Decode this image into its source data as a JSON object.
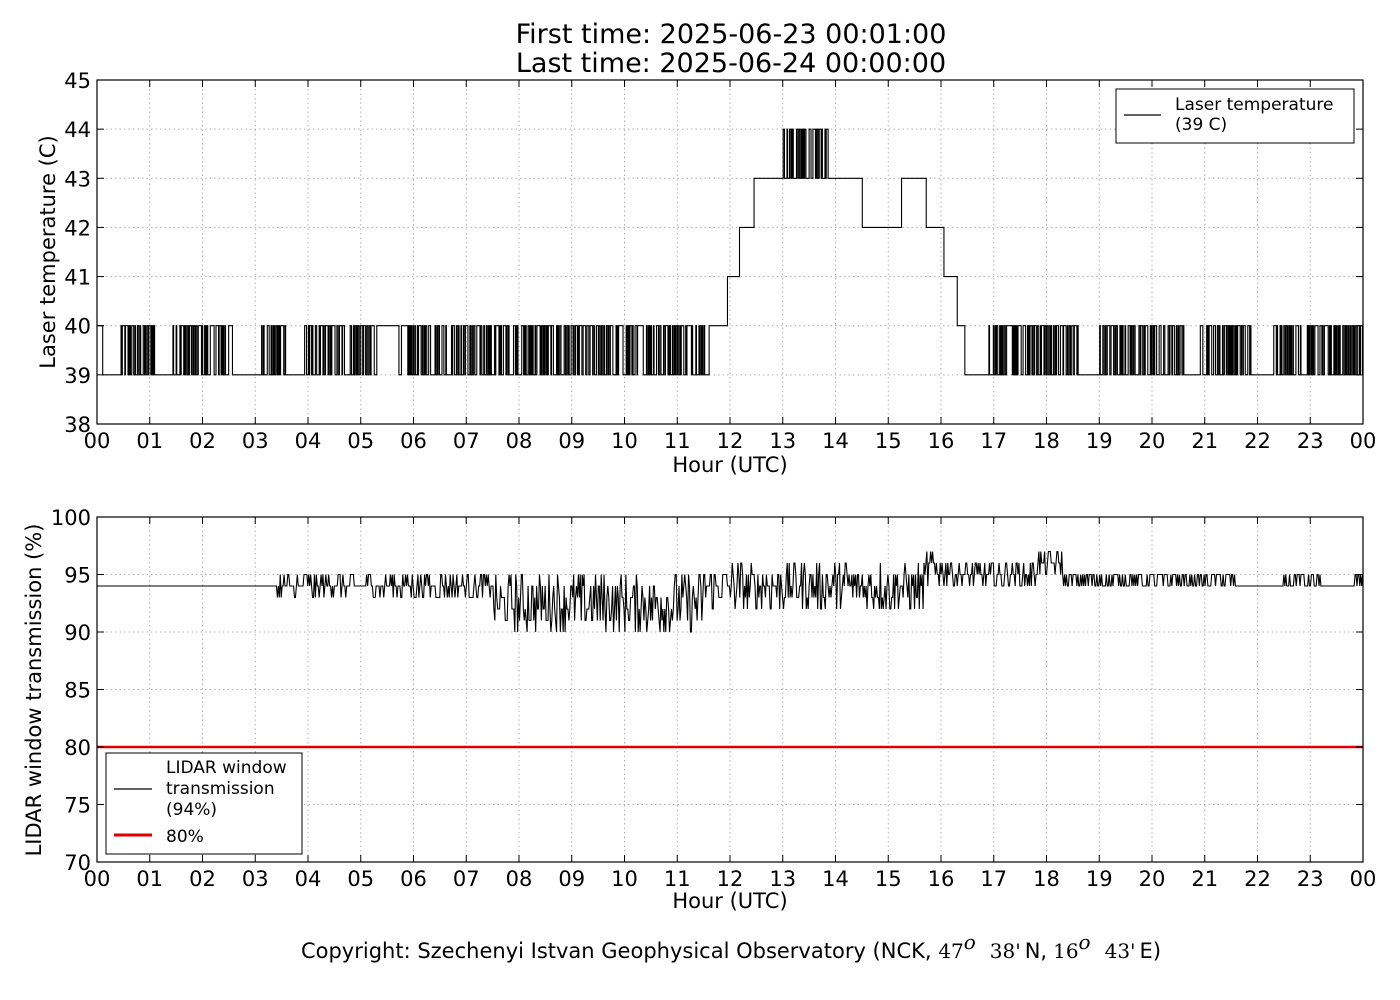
{
  "header": {
    "title_line1": "First time: 2025-06-23 00:01:00",
    "title_line2": "Last time: 2025-06-24 00:00:00"
  },
  "footer": {
    "copyright_prefix": "Copyright: Szechenyi Istvan Geophysical Observatory (NCK, ",
    "lat_deg": "47",
    "deg_symbol": "o",
    "lat_min": "38'",
    "lat_dir": "N,",
    "lon_deg": "16",
    "lon_min": "43'",
    "lon_dir": "E)"
  },
  "colors": {
    "series": "#000000",
    "threshold": "#e00000",
    "grid": "#b0b0b0"
  },
  "chart_data": [
    {
      "type": "line",
      "xlabel": "Hour (UTC)",
      "ylabel": "Laser temperature (C)",
      "xlim": [
        0,
        24
      ],
      "ylim": [
        38,
        45
      ],
      "grid": true,
      "legend_position": "top-right",
      "x_tick_labels": [
        "00",
        "01",
        "02",
        "03",
        "04",
        "05",
        "06",
        "07",
        "08",
        "09",
        "10",
        "11",
        "12",
        "13",
        "14",
        "15",
        "16",
        "17",
        "18",
        "19",
        "20",
        "21",
        "22",
        "23",
        "00"
      ],
      "y_ticks": [
        38,
        39,
        40,
        41,
        42,
        43,
        44,
        45
      ],
      "series": [
        {
          "name": "Laser temperature\n(39 C)",
          "legend_line1": "Laser temperature",
          "legend_line2": "(39 C)",
          "x": [
            0,
            0.1,
            0.5,
            0.95,
            1.6,
            2.5,
            3.0,
            4.0,
            4.3,
            5.0,
            5.8,
            6.0,
            7.0,
            7.4,
            8.0,
            8.6,
            9.0,
            10.0,
            11.0,
            11.6,
            11.95,
            12.17,
            12.45,
            13.0,
            13.85,
            14.5,
            15.25,
            15.72,
            16.05,
            16.3,
            16.45,
            17.0,
            18.0,
            19.0,
            20.0,
            21.0,
            22.0,
            23.0,
            24.0
          ],
          "y": [
            40,
            39,
            40,
            39,
            40,
            39,
            39,
            39,
            40,
            40,
            39,
            39,
            40,
            40,
            40,
            40,
            39,
            39,
            39,
            40,
            41,
            42,
            43,
            44,
            43,
            42,
            43,
            42,
            41,
            40,
            39,
            39,
            39,
            39,
            39,
            39,
            39,
            39,
            40
          ],
          "noise_segments": [
            {
              "from": 0.45,
              "to": 1.1,
              "low": 39,
              "high": 40
            },
            {
              "from": 1.4,
              "to": 2.6,
              "low": 39,
              "high": 40
            },
            {
              "from": 3.1,
              "to": 3.6,
              "low": 39,
              "high": 40
            },
            {
              "from": 3.9,
              "to": 5.3,
              "low": 39,
              "high": 40
            },
            {
              "from": 5.7,
              "to": 11.55,
              "low": 39,
              "high": 40
            },
            {
              "from": 13.0,
              "to": 13.85,
              "low": 43,
              "high": 44
            },
            {
              "from": 16.9,
              "to": 18.6,
              "low": 39,
              "high": 40
            },
            {
              "from": 19.0,
              "to": 20.6,
              "low": 39,
              "high": 40
            },
            {
              "from": 20.9,
              "to": 21.9,
              "low": 39,
              "high": 40
            },
            {
              "from": 22.3,
              "to": 24.0,
              "low": 39,
              "high": 40
            }
          ]
        }
      ]
    },
    {
      "type": "line",
      "xlabel": "Hour (UTC)",
      "ylabel": "LIDAR window transmission (%)",
      "xlim": [
        0,
        24
      ],
      "ylim": [
        70,
        100
      ],
      "grid": true,
      "legend_position": "bottom-left",
      "x_tick_labels": [
        "00",
        "01",
        "02",
        "03",
        "04",
        "05",
        "06",
        "07",
        "08",
        "09",
        "10",
        "11",
        "12",
        "13",
        "14",
        "15",
        "16",
        "17",
        "18",
        "19",
        "20",
        "21",
        "22",
        "23",
        "00"
      ],
      "y_ticks": [
        70,
        75,
        80,
        85,
        90,
        95,
        100
      ],
      "series": [
        {
          "name": "LIDAR window\ntransmission\n(94%)",
          "legend_line1": "LIDAR window",
          "legend_line2": "transmission",
          "legend_line3": "(94%)",
          "x": [
            0,
            3.35,
            3.4,
            4.0,
            5.0,
            6.0,
            7.0,
            8.0,
            9.0,
            9.8,
            10.5,
            11.0,
            12.0,
            12.3,
            13.0,
            14.0,
            15.0,
            15.8,
            16.0,
            16.5,
            17.0,
            17.8,
            18.0,
            18.5,
            19.0,
            20.0,
            21.0,
            21.6,
            22.5,
            23.0,
            24.0
          ],
          "y": [
            94,
            94,
            95,
            94,
            95,
            95,
            94,
            93,
            93,
            91,
            91,
            93,
            94,
            95,
            95,
            94,
            95,
            96,
            95,
            96,
            95,
            95,
            96,
            95,
            95,
            94,
            94,
            94,
            94,
            94,
            94
          ],
          "noise_segments": [
            {
              "from": 3.4,
              "to": 5.0,
              "low": 93,
              "high": 95
            },
            {
              "from": 5.0,
              "to": 7.5,
              "low": 93,
              "high": 95
            },
            {
              "from": 7.5,
              "to": 11.5,
              "low": 90,
              "high": 95
            },
            {
              "from": 11.5,
              "to": 15.7,
              "low": 92,
              "high": 96
            },
            {
              "from": 15.7,
              "to": 16.2,
              "low": 94,
              "high": 97
            },
            {
              "from": 16.2,
              "to": 17.8,
              "low": 94,
              "high": 96
            },
            {
              "from": 17.8,
              "to": 18.3,
              "low": 95,
              "high": 97
            },
            {
              "from": 18.3,
              "to": 21.6,
              "low": 94,
              "high": 95
            },
            {
              "from": 22.5,
              "to": 23.2,
              "low": 94,
              "high": 95
            },
            {
              "from": 23.8,
              "to": 24.0,
              "low": 94,
              "high": 95
            }
          ]
        },
        {
          "name": "80%",
          "x": [
            0,
            24
          ],
          "y": [
            80,
            80
          ]
        }
      ]
    }
  ]
}
